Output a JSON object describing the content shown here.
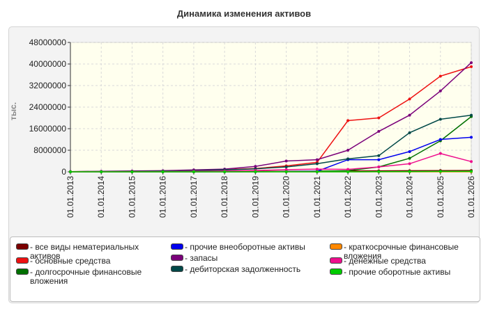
{
  "colors": {
    "intangible": "#7b0000",
    "fixed": "#ee1111",
    "longfin": "#007000",
    "othernoncur": "#0000ee",
    "inventory": "#7a007a",
    "receivables": "#004848",
    "shortfin": "#ff8800",
    "cash": "#ee0e8e",
    "othercur": "#00cc00"
  },
  "chart_data": {
    "type": "line",
    "title": "Динамика изменения активов",
    "ylabel": "тыс.",
    "xlabel": "",
    "ylim": [
      0,
      48000000
    ],
    "yticks": [
      "0",
      "8000000",
      "16000000",
      "24000000",
      "32000000",
      "40000000",
      "48000000"
    ],
    "categories": [
      "01.01.2013",
      "01.01.2014",
      "01.01.2015",
      "01.01.2016",
      "01.01.2017",
      "01.01.2018",
      "01.01.2019",
      "01.01.2020",
      "01.01.2021",
      "01.01.2022",
      "01.01.2023",
      "01.01.2024",
      "01.01.2025",
      "01.01.2026"
    ],
    "grid": true,
    "legend_position": "bottom",
    "series": [
      {
        "name": "- все виды нематериальных активов",
        "color_key": "intangible",
        "values": [
          0,
          0,
          0,
          0,
          0,
          100000,
          150000,
          200000,
          250000,
          300000,
          350000,
          400000,
          450000,
          500000
        ]
      },
      {
        "name": "- основные средства",
        "color_key": "fixed",
        "values": [
          50000,
          100000,
          150000,
          300000,
          500000,
          800000,
          1200000,
          2200000,
          3500000,
          19000000,
          20000000,
          27000000,
          35500000,
          39000000
        ]
      },
      {
        "name": "- долгосрочные финансовые вложения",
        "color_key": "longfin",
        "values": [
          0,
          0,
          0,
          0,
          0,
          0,
          50000,
          100000,
          200000,
          400000,
          1800000,
          5000000,
          11500000,
          20500000
        ]
      },
      {
        "name": "- прочие внеоборотные активы",
        "color_key": "othernoncur",
        "values": [
          0,
          0,
          0,
          0,
          0,
          0,
          0,
          100000,
          200000,
          4500000,
          4500000,
          7500000,
          12000000,
          12800000
        ]
      },
      {
        "name": "- запасы",
        "color_key": "inventory",
        "values": [
          50000,
          200000,
          300000,
          400000,
          700000,
          1000000,
          2000000,
          4000000,
          4500000,
          8000000,
          15000000,
          21000000,
          30000000,
          40500000
        ]
      },
      {
        "name": "- дебиторская задолженность",
        "color_key": "receivables",
        "values": [
          50000,
          100000,
          150000,
          250000,
          400000,
          700000,
          1100000,
          1800000,
          3000000,
          4800000,
          6000000,
          14500000,
          19500000,
          21000000
        ]
      },
      {
        "name": "- краткосрочные финансовые вложения",
        "color_key": "shortfin",
        "values": [
          0,
          0,
          0,
          0,
          0,
          0,
          0,
          0,
          0,
          0,
          0,
          0,
          0,
          0
        ]
      },
      {
        "name": "- денежные средства",
        "color_key": "cash",
        "values": [
          0,
          50000,
          100000,
          100000,
          200000,
          300000,
          500000,
          800000,
          1000000,
          900000,
          1800000,
          3000000,
          6800000,
          3800000
        ]
      },
      {
        "name": "- прочие оборотные активы",
        "color_key": "othercur",
        "values": [
          0,
          0,
          0,
          0,
          0,
          0,
          0,
          0,
          0,
          0,
          50000,
          100000,
          150000,
          150000
        ]
      }
    ]
  }
}
